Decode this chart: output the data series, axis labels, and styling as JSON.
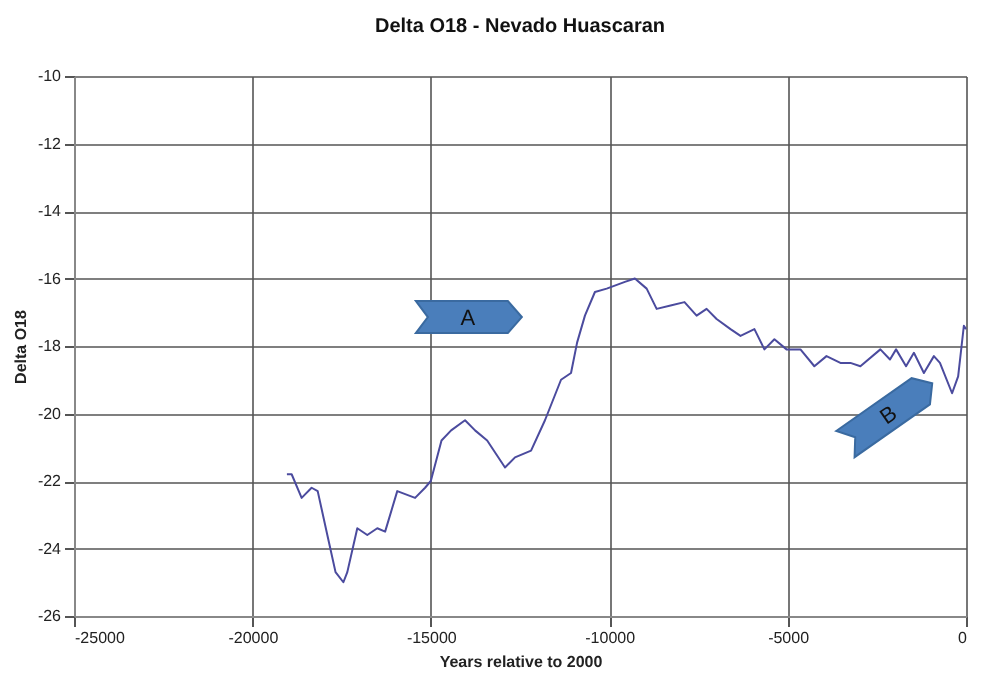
{
  "chart_data": {
    "type": "line",
    "title": "Delta O18 - Nevado Huascaran",
    "xlabel": "Years relative to 2000",
    "ylabel": "Delta O18",
    "x": [
      -19033,
      -18900,
      -18620,
      -18340,
      -18170,
      -17900,
      -17670,
      -17450,
      -17340,
      -17060,
      -16780,
      -16500,
      -16280,
      -15940,
      -15440,
      -15160,
      -15000,
      -14700,
      -14430,
      -14040,
      -13760,
      -13420,
      -12920,
      -12640,
      -12190,
      -11800,
      -11350,
      -11070,
      -10900,
      -10680,
      -10400,
      -10070,
      -9560,
      -9280,
      -8950,
      -8670,
      -8280,
      -7890,
      -7550,
      -7270,
      -6990,
      -6600,
      -6320,
      -5930,
      -5650,
      -5370,
      -5030,
      -4640,
      -4250,
      -3910,
      -3520,
      -3240,
      -2960,
      -2400,
      -2130,
      -1960,
      -1680,
      -1460,
      -1180,
      -900,
      -730,
      -390,
      -220,
      -60,
      0
    ],
    "series": [
      {
        "color": "#4b4b9e",
        "values": [
          -21.8,
          -21.8,
          -22.5,
          -22.2,
          -22.3,
          -23.6,
          -24.7,
          -25.0,
          -24.7,
          -23.4,
          -23.6,
          -23.4,
          -23.5,
          -22.3,
          -22.5,
          -22.2,
          -22.0,
          -20.8,
          -20.5,
          -20.2,
          -20.5,
          -20.8,
          -21.6,
          -21.3,
          -21.1,
          -20.2,
          -19.0,
          -18.8,
          -17.9,
          -17.1,
          -16.4,
          -16.3,
          -16.1,
          -16.0,
          -16.3,
          -16.9,
          -16.8,
          -16.7,
          -17.1,
          -16.9,
          -17.2,
          -17.5,
          -17.7,
          -17.5,
          -18.1,
          -17.8,
          -18.1,
          -18.1,
          -18.6,
          -18.3,
          -18.5,
          -18.5,
          -18.6,
          -18.1,
          -18.4,
          -18.1,
          -18.6,
          -18.2,
          -18.8,
          -18.3,
          -18.5,
          -19.4,
          -18.9,
          -17.4,
          -17.5
        ]
      }
    ],
    "xlim": [
      -25000,
      0
    ],
    "xticks": [
      -25000,
      -20000,
      -15000,
      -10000,
      -5000,
      0
    ],
    "ylim": [
      -26,
      -10
    ],
    "yticks": [
      -26,
      -24,
      -22,
      -20,
      -18,
      -16,
      -14,
      -12,
      -10
    ],
    "grid": true,
    "annotations": [
      "A",
      "B"
    ]
  }
}
